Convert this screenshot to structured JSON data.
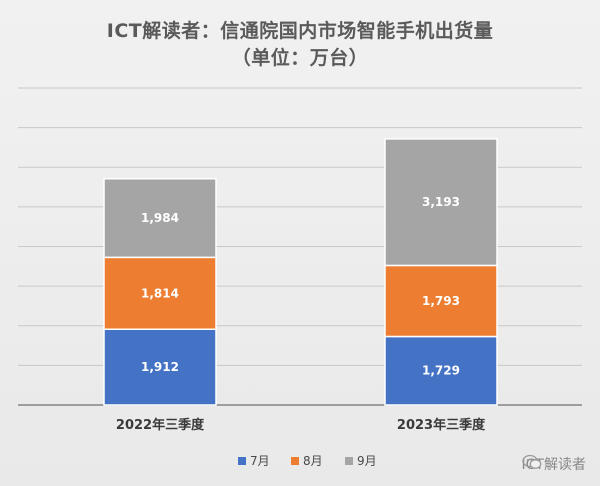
{
  "header": {
    "title": "ICT解读者：信通院国内市场智能手机出货量",
    "subtitle": "（单位：万台）"
  },
  "chart_data": {
    "type": "bar",
    "stacked": true,
    "categories": [
      "2022年三季度",
      "2023年三季度"
    ],
    "series": [
      {
        "name": "7月",
        "values": [
          1912,
          1729
        ],
        "labels": [
          "1,912",
          "1,729"
        ],
        "color": "#4472c4"
      },
      {
        "name": "8月",
        "values": [
          1814,
          1793
        ],
        "labels": [
          "1,814",
          "1,793"
        ],
        "color": "#ed7d31"
      },
      {
        "name": "9月",
        "values": [
          1984,
          3193
        ],
        "labels": [
          "1,984",
          "3,193"
        ],
        "color": "#a5a5a5"
      }
    ],
    "ylim": [
      0,
      8000
    ],
    "grid": true,
    "legend": "bottom"
  },
  "watermark": {
    "text": "ICT解读者",
    "icon": "wechat-icon"
  }
}
